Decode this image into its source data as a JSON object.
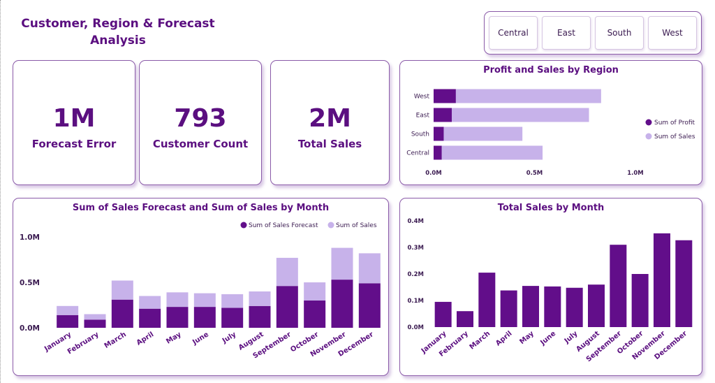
{
  "dashboard": {
    "title": "Customer, Region & Forecast Analysis"
  },
  "slicer": {
    "options": [
      "Central",
      "East",
      "South",
      "West"
    ]
  },
  "kpis": [
    {
      "value": "1M",
      "label": "Forecast Error"
    },
    {
      "value": "793",
      "label": "Customer Count"
    },
    {
      "value": "2M",
      "label": "Total Sales"
    }
  ],
  "colors": {
    "dark": "#620e8a",
    "light": "#c7b2ea",
    "text": "#5b0f80"
  },
  "chart_data": [
    {
      "type": "bar",
      "orientation": "horizontal",
      "title": "Profit and Sales by Region",
      "categories": [
        "West",
        "East",
        "South",
        "Central"
      ],
      "series": [
        {
          "name": "Sum of Profit",
          "color": "#620e8a",
          "values": [
            0.11,
            0.09,
            0.05,
            0.04
          ]
        },
        {
          "name": "Sum of Sales",
          "color": "#c7b2ea",
          "values": [
            0.83,
            0.77,
            0.44,
            0.54
          ]
        }
      ],
      "xticks": [
        "0.0M",
        "0.5M",
        "1.0M"
      ],
      "xlim": [
        0,
        1.0
      ],
      "legend": "right",
      "grid": false
    },
    {
      "type": "bar",
      "stacked": true,
      "title": "Sum of Sales Forecast and Sum of Sales by Month",
      "categories": [
        "January",
        "February",
        "March",
        "April",
        "May",
        "June",
        "July",
        "August",
        "September",
        "October",
        "November",
        "December"
      ],
      "series": [
        {
          "name": "Sum of Sales Forecast",
          "color": "#620e8a",
          "values": [
            0.14,
            0.09,
            0.31,
            0.21,
            0.23,
            0.23,
            0.22,
            0.24,
            0.46,
            0.3,
            0.53,
            0.49
          ]
        },
        {
          "name": "Sum of Sales",
          "color": "#c7b2ea",
          "values": [
            0.1,
            0.06,
            0.21,
            0.14,
            0.16,
            0.15,
            0.15,
            0.16,
            0.31,
            0.2,
            0.35,
            0.33
          ]
        }
      ],
      "yticks": [
        "0.0M",
        "0.5M",
        "1.0M"
      ],
      "ylim": [
        0,
        1.0
      ],
      "legend": "top-right",
      "grid": false
    },
    {
      "type": "bar",
      "title": "Total Sales by Month",
      "categories": [
        "January",
        "February",
        "March",
        "April",
        "May",
        "June",
        "July",
        "August",
        "September",
        "October",
        "November",
        "December"
      ],
      "series": [
        {
          "name": "",
          "color": "#620e8a",
          "values": [
            0.095,
            0.06,
            0.205,
            0.138,
            0.155,
            0.153,
            0.148,
            0.16,
            0.31,
            0.2,
            0.353,
            0.327
          ]
        }
      ],
      "yticks": [
        "0.0M",
        "0.1M",
        "0.2M",
        "0.3M",
        "0.4M"
      ],
      "ylim": [
        0,
        0.4
      ],
      "grid": false
    }
  ]
}
